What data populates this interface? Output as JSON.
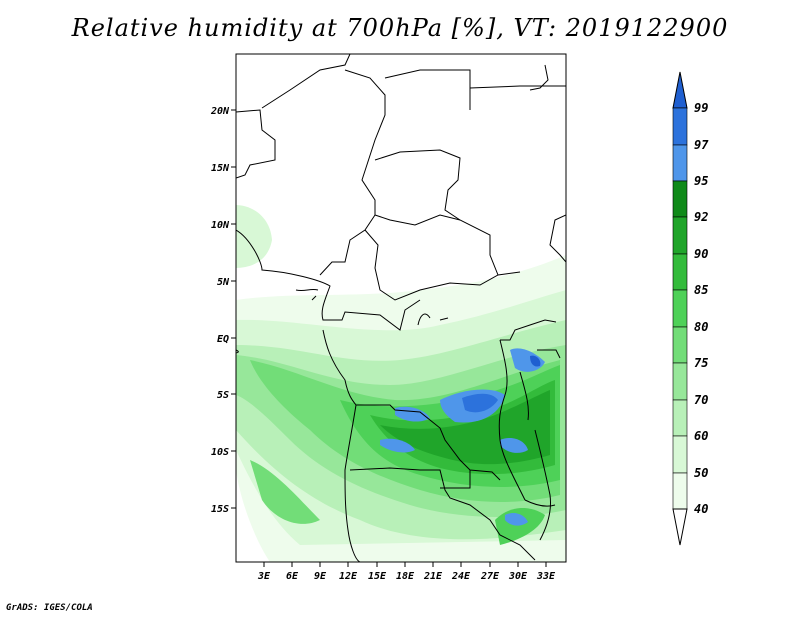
{
  "title": "Relative humidity at 700hPa [%], VT: 2019122900",
  "credit": "GrADS: IGES/COLA",
  "map": {
    "lat_labels": [
      "20N",
      "15N",
      "10N",
      "5N",
      "EQ",
      "5S",
      "10S",
      "15S"
    ],
    "lon_labels": [
      "3E",
      "6E",
      "9E",
      "12E",
      "15E",
      "18E",
      "21E",
      "24E",
      "27E",
      "30E",
      "33E"
    ]
  },
  "colorbar": {
    "levels": [
      "99",
      "97",
      "95",
      "92",
      "90",
      "85",
      "80",
      "75",
      "70",
      "60",
      "50",
      "40"
    ],
    "colors": [
      "#1f5fd0",
      "#2c72dc",
      "#4f96ea",
      "#0f8a19",
      "#20a52a",
      "#33bb3b",
      "#4ed158",
      "#72dd78",
      "#97e79a",
      "#b8f0b8",
      "#d8f8d6",
      "#eefcec"
    ]
  }
}
